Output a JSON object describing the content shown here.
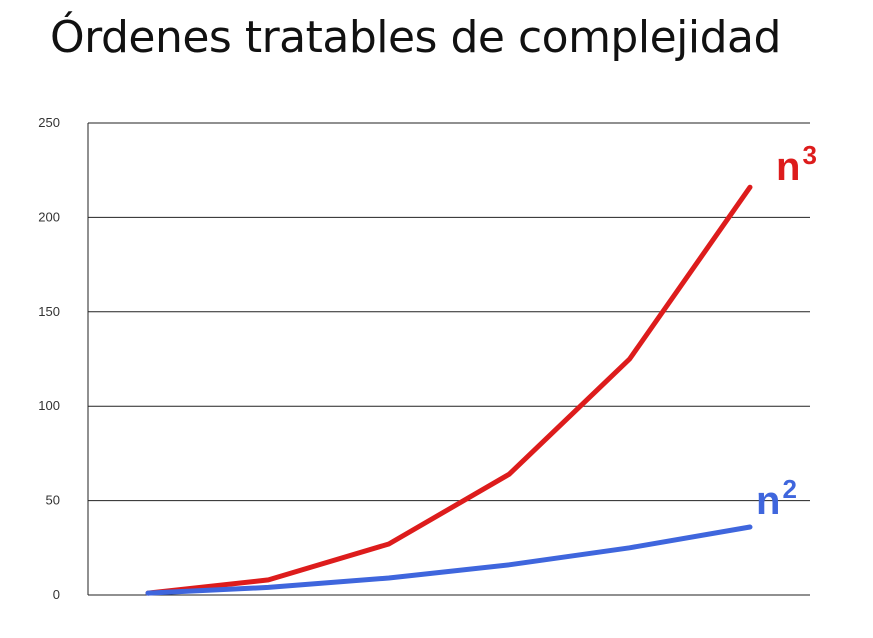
{
  "title": "Órdenes tratables de complejidad",
  "chart_data": {
    "type": "line",
    "x": [
      1,
      2,
      3,
      4,
      5,
      6
    ],
    "ylim": [
      0,
      250
    ],
    "yticks": [
      "0",
      "50",
      "100",
      "150",
      "200",
      "250"
    ],
    "grid": true,
    "series": [
      {
        "name": "n",
        "exponent": "3",
        "color": "#dd1c1c",
        "values": [
          1,
          8,
          27,
          64,
          125,
          216
        ]
      },
      {
        "name": "n",
        "exponent": "2",
        "color": "#3f66dd",
        "values": [
          1,
          4,
          9,
          16,
          25,
          36
        ]
      }
    ]
  }
}
